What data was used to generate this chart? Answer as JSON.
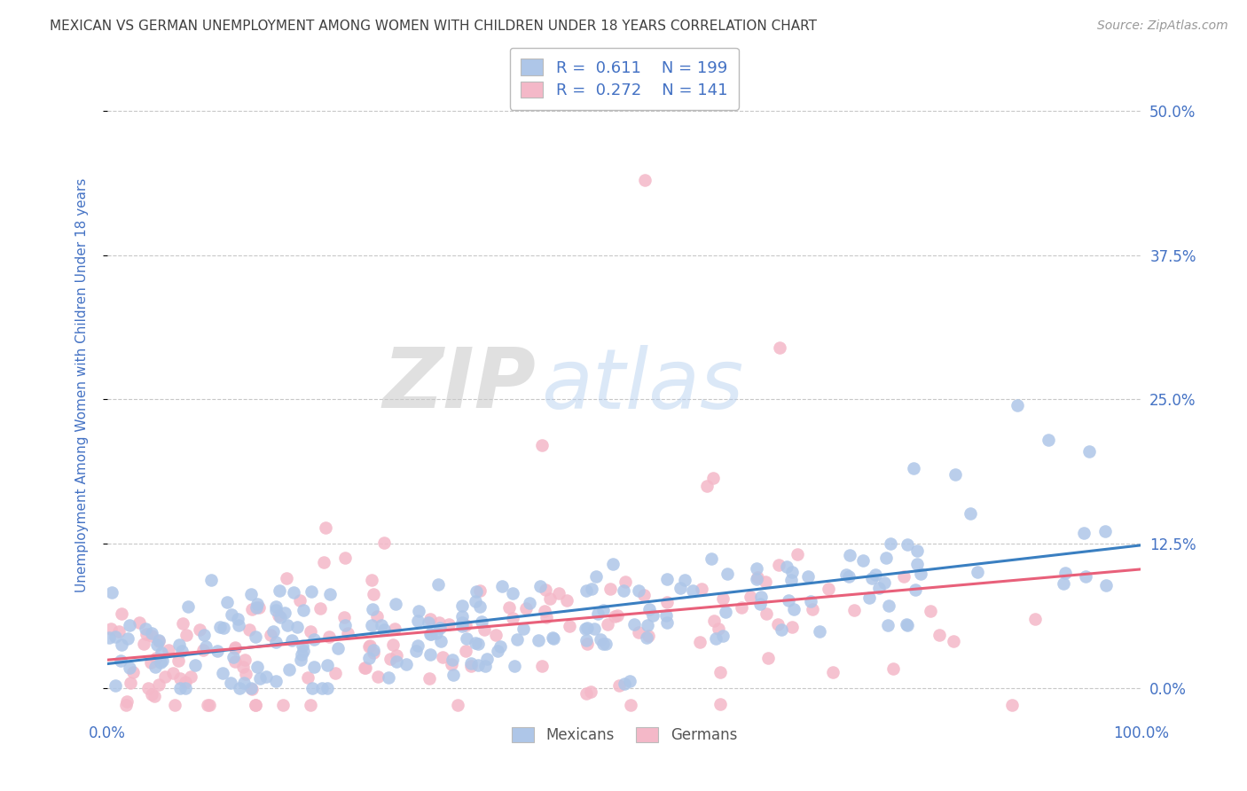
{
  "title": "MEXICAN VS GERMAN UNEMPLOYMENT AMONG WOMEN WITH CHILDREN UNDER 18 YEARS CORRELATION CHART",
  "source": "Source: ZipAtlas.com",
  "ylabel": "Unemployment Among Women with Children Under 18 years",
  "right_yticks": [
    0.0,
    0.125,
    0.25,
    0.375,
    0.5
  ],
  "right_ytick_labels": [
    "0.0%",
    "12.5%",
    "25.0%",
    "37.5%",
    "50.0%"
  ],
  "mexicans_R": 0.611,
  "mexicans_N": 199,
  "germans_R": 0.272,
  "germans_N": 141,
  "mexican_color": "#aec6e8",
  "german_color": "#f4b8c8",
  "mexican_line_color": "#3a7fc1",
  "german_line_color": "#e8607a",
  "legend_label_1": "Mexicans",
  "legend_label_2": "Germans",
  "watermark_zip": "ZIP",
  "watermark_atlas": "atlas",
  "background_color": "#ffffff",
  "title_color": "#404040",
  "axis_label_color": "#4472c4",
  "tick_color": "#4472c4",
  "grid_color": "#c8c8c8",
  "xlim": [
    0.0,
    1.0
  ],
  "ylim": [
    -0.025,
    0.55
  ],
  "seed": 7
}
